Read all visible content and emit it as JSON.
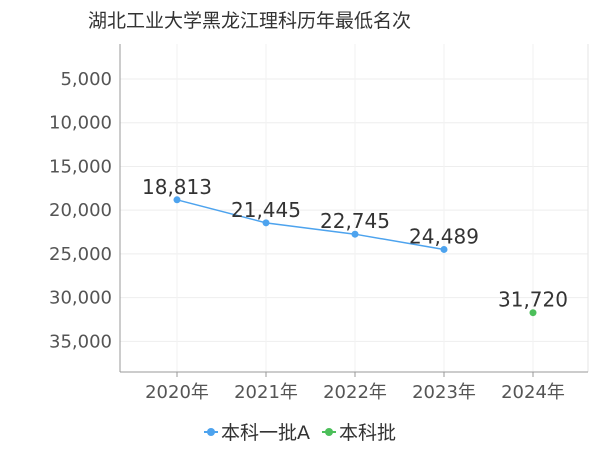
{
  "chart_data": {
    "type": "line",
    "title": "湖北工业大学黑龙江理科历年最低名次",
    "categories": [
      "2020年",
      "2021年",
      "2022年",
      "2023年",
      "2024年"
    ],
    "y_ticks": [
      "5,000",
      "10,000",
      "15,000",
      "20,000",
      "25,000",
      "30,000",
      "35,000"
    ],
    "ylim": [
      1000,
      38500
    ],
    "y_inverted": true,
    "grid": true,
    "legend_position": "bottom",
    "series": [
      {
        "name": "本科一批A",
        "color": "#4da3ee",
        "values": [
          18813,
          21445,
          22745,
          24489,
          null
        ],
        "labels": [
          "18,813",
          "21,445",
          "22,745",
          "24,489",
          null
        ]
      },
      {
        "name": "本科批",
        "color": "#4cbf5a",
        "values": [
          null,
          null,
          null,
          null,
          31720
        ],
        "labels": [
          null,
          null,
          null,
          null,
          "31,720"
        ]
      }
    ]
  }
}
